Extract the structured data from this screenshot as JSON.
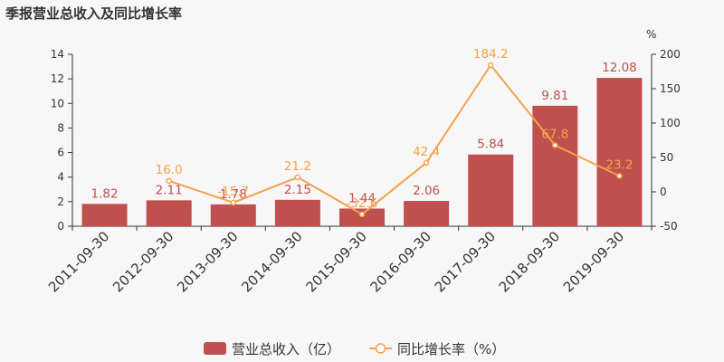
{
  "title": "季报营业总收入及同比增长率",
  "colors": {
    "bar": "#c0504d",
    "line": "#f5a24b",
    "bar_label": "#c0504d",
    "line_label": "#f5a24b"
  },
  "chart_data": {
    "type": "bar",
    "categories": [
      "2011-09-30",
      "2012-09-30",
      "2013-09-30",
      "2014-09-30",
      "2015-09-30",
      "2016-09-30",
      "2017-09-30",
      "2018-09-30",
      "2019-09-30"
    ],
    "series": [
      {
        "name": "营业总收入（亿）",
        "type": "bar",
        "axis": "left",
        "values": [
          1.82,
          2.11,
          1.78,
          2.15,
          1.44,
          2.06,
          5.84,
          9.81,
          12.08
        ],
        "labels": [
          "1.82",
          "2.11",
          "1.78",
          "2.15",
          "1.44",
          "2.06",
          "5.84",
          "9.81",
          "12.08"
        ]
      },
      {
        "name": "同比增长率（%）",
        "type": "line",
        "axis": "right",
        "values": [
          null,
          16.0,
          -15.7,
          21.2,
          -32.6,
          42.4,
          184.2,
          67.8,
          23.2
        ],
        "labels": [
          "",
          "16.0",
          "-15.7",
          "21.2",
          "-32.6",
          "42.4",
          "184.2",
          "67.8",
          "23.2"
        ]
      }
    ],
    "y_left": {
      "min": 0,
      "max": 14,
      "ticks": [
        "0",
        "2",
        "4",
        "6",
        "8",
        "10",
        "12",
        "14"
      ]
    },
    "y_right": {
      "min": -50,
      "max": 200,
      "unit": "%",
      "ticks": [
        "-50",
        "0",
        "50",
        "100",
        "150",
        "200"
      ]
    },
    "legend_position": "bottom-center",
    "grid": false
  },
  "legend": {
    "bar_label": "营业总收入（亿）",
    "line_label": "同比增长率（%）"
  }
}
